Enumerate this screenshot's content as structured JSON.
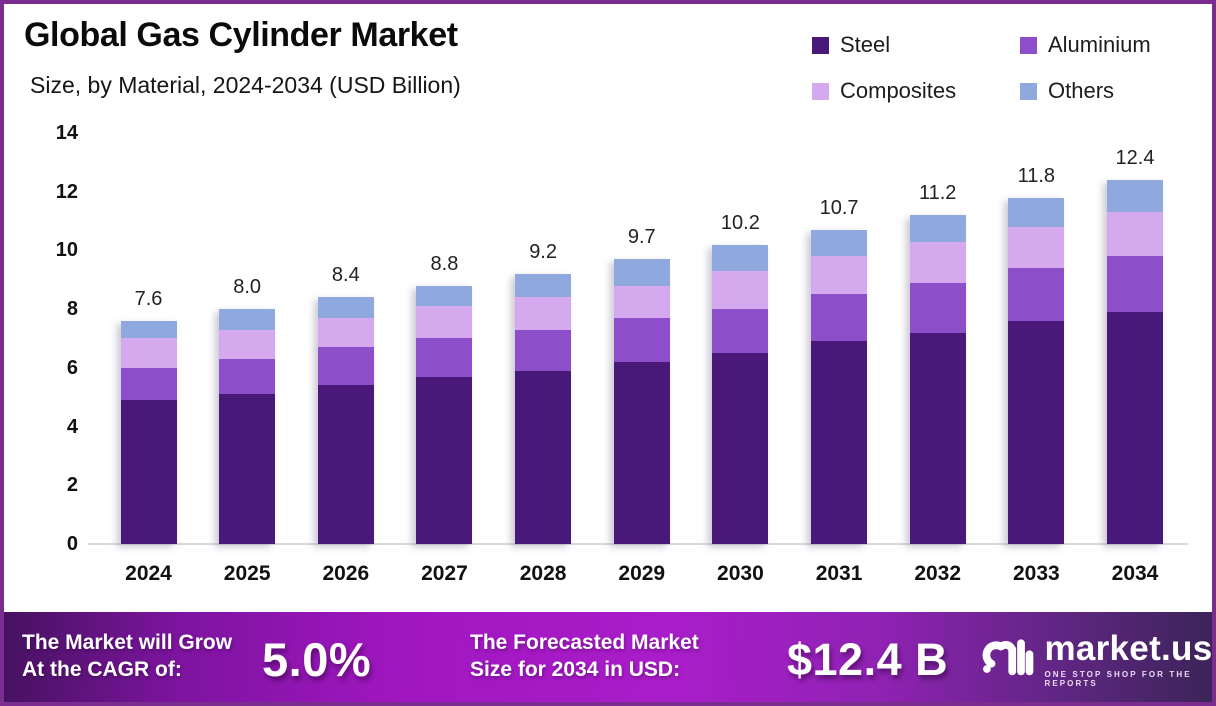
{
  "frame": {
    "border_color": "#7b2c8f"
  },
  "header": {
    "title": "Global Gas Cylinder Market",
    "subtitle": "Size, by Material, 2024-2034 (USD Billion)"
  },
  "legend": [
    {
      "label": "Steel",
      "color": "#481979"
    },
    {
      "label": "Aluminium",
      "color": "#8c4fc9"
    },
    {
      "label": "Composites",
      "color": "#d4a9ee"
    },
    {
      "label": "Others",
      "color": "#8fa9de"
    }
  ],
  "chart_data": {
    "type": "bar",
    "stacked": true,
    "title": "Global Gas Cylinder Market Size, by Material, 2024-2034 (USD Billion)",
    "categories": [
      "2024",
      "2025",
      "2026",
      "2027",
      "2028",
      "2029",
      "2030",
      "2031",
      "2032",
      "2033",
      "2034"
    ],
    "series": [
      {
        "name": "Steel",
        "color": "#481979",
        "values": [
          4.9,
          5.1,
          5.4,
          5.7,
          5.9,
          6.2,
          6.5,
          6.9,
          7.2,
          7.6,
          7.9
        ]
      },
      {
        "name": "Aluminium",
        "color": "#8c4fc9",
        "values": [
          1.1,
          1.2,
          1.3,
          1.3,
          1.4,
          1.5,
          1.5,
          1.6,
          1.7,
          1.8,
          1.9
        ]
      },
      {
        "name": "Composites",
        "color": "#d4a9ee",
        "values": [
          1.0,
          1.0,
          1.0,
          1.1,
          1.1,
          1.1,
          1.3,
          1.3,
          1.4,
          1.4,
          1.5
        ]
      },
      {
        "name": "Others",
        "color": "#8fa9de",
        "values": [
          0.6,
          0.7,
          0.7,
          0.7,
          0.8,
          0.9,
          0.9,
          0.9,
          0.9,
          1.0,
          1.1
        ]
      }
    ],
    "totals": [
      "7.6",
      "8.0",
      "8.4",
      "8.8",
      "9.2",
      "9.7",
      "10.2",
      "10.7",
      "11.2",
      "11.8",
      "12.4"
    ],
    "xlabel": "",
    "ylabel": "",
    "ylim": [
      0,
      14
    ],
    "yticks": [
      "0",
      "2",
      "4",
      "6",
      "8",
      "10",
      "12",
      "14"
    ],
    "grid": false,
    "legend_position": "top-right"
  },
  "footer": {
    "cagr_label_line1": "The Market will Grow",
    "cagr_label_line2": "At the CAGR of:",
    "cagr_value": "5.0%",
    "forecast_label_line1": "The Forecasted Market",
    "forecast_label_line2": "Size for 2034 in USD:",
    "forecast_value": "$12.4 B",
    "brand": {
      "name": "market.us",
      "tagline": "ONE STOP SHOP FOR THE REPORTS"
    }
  }
}
